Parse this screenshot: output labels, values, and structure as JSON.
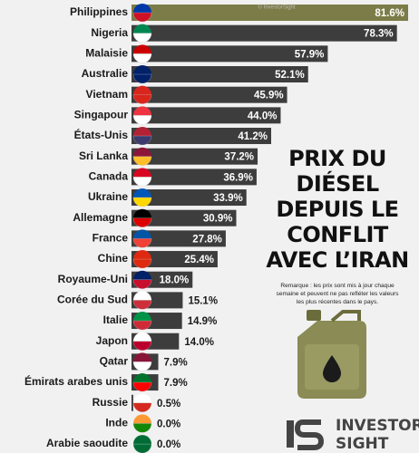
{
  "chart_data": {
    "type": "bar",
    "orientation": "horizontal",
    "title_lines": [
      "PRIX DU",
      "DIÉSEL",
      "DEPUIS LE",
      "CONFLIT",
      "AVEC L’IRAN"
    ],
    "note_lines": [
      "Remarque : les prix sont mis à jour chaque",
      "semaine et peuvent ne pas refléter les valeurs",
      "les plus récentes dans le pays."
    ],
    "watermark": "© InvestorSight",
    "brand": [
      "INVESTOR",
      "SIGHT"
    ],
    "categories": [
      "Philippines",
      "Nigeria",
      "Malaisie",
      "Australie",
      "Vietnam",
      "Singapour",
      "États-Unis",
      "Sri Lanka",
      "Canada",
      "Ukraine",
      "Allemagne",
      "France",
      "Chine",
      "Royaume-Uni",
      "Corée du Sud",
      "Italie",
      "Japon",
      "Qatar",
      "Émirats arabes unis",
      "Russie",
      "Inde",
      "Arabie saoudite"
    ],
    "values": [
      81.6,
      78.3,
      57.9,
      52.1,
      45.9,
      44.0,
      41.2,
      37.2,
      36.9,
      33.9,
      30.9,
      27.8,
      25.4,
      18.0,
      15.1,
      14.9,
      14.0,
      7.9,
      7.9,
      0.5,
      0.0,
      0.0
    ],
    "value_labels": [
      "81.6%",
      "78.3%",
      "57.9%",
      "52.1%",
      "45.9%",
      "44.0%",
      "41.2%",
      "37.2%",
      "36.9%",
      "33.9%",
      "30.9%",
      "27.8%",
      "25.4%",
      "18.0%",
      "15.1%",
      "14.9%",
      "14.0%",
      "7.9%",
      "7.9%",
      "0.5%",
      "0.0%",
      "0.0%"
    ],
    "colors": [
      "#7b7c47",
      "#3d3d3d",
      "#3d3d3d",
      "#3d3d3d",
      "#3d3d3d",
      "#3d3d3d",
      "#3d3d3d",
      "#3d3d3d",
      "#3d3d3d",
      "#3d3d3d",
      "#3d3d3d",
      "#3d3d3d",
      "#3d3d3d",
      "#3d3d3d",
      "#3d3d3d",
      "#3d3d3d",
      "#3d3d3d",
      "#3d3d3d",
      "#3d3d3d",
      "#3d3d3d",
      "#3d3d3d",
      "#3d3d3d"
    ]
  }
}
